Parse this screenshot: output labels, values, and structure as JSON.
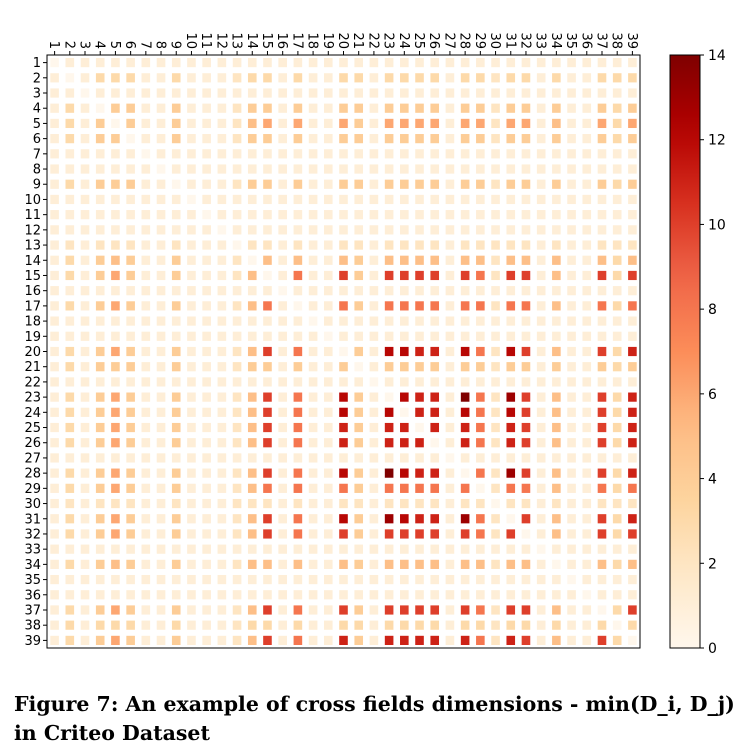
{
  "caption": {
    "line1": "Figure 7: An example of cross fields dimensions - min(D_i, D_j)",
    "line2": "in Criteo Dataset"
  },
  "chart_data": {
    "type": "heatmap",
    "title": "",
    "xlabel": "",
    "ylabel": "",
    "fields": [
      "1",
      "2",
      "3",
      "4",
      "5",
      "6",
      "7",
      "8",
      "9",
      "10",
      "11",
      "12",
      "13",
      "14",
      "15",
      "16",
      "17",
      "18",
      "19",
      "20",
      "21",
      "22",
      "23",
      "24",
      "25",
      "26",
      "27",
      "28",
      "29",
      "30",
      "31",
      "32",
      "33",
      "34",
      "35",
      "36",
      "37",
      "38",
      "39"
    ],
    "dimensions": [
      1,
      3,
      1,
      4,
      6,
      4,
      1,
      1,
      4,
      1,
      1,
      1,
      2,
      5,
      10,
      1,
      8,
      1,
      1,
      12,
      4,
      1,
      14,
      12,
      11,
      11,
      1,
      14,
      8,
      2,
      13,
      10,
      1,
      5,
      1,
      1,
      10,
      3,
      11
    ],
    "value_rule": "min(D_i, D_j)",
    "diagonal_blank": true,
    "colormap": "OrRd",
    "vmin": 0,
    "vmax": 14,
    "colorbar_ticks": [
      0,
      2,
      4,
      6,
      8,
      10,
      12,
      14
    ],
    "colors": {
      "low": "#fff7ec",
      "high": "#7f0000"
    }
  }
}
